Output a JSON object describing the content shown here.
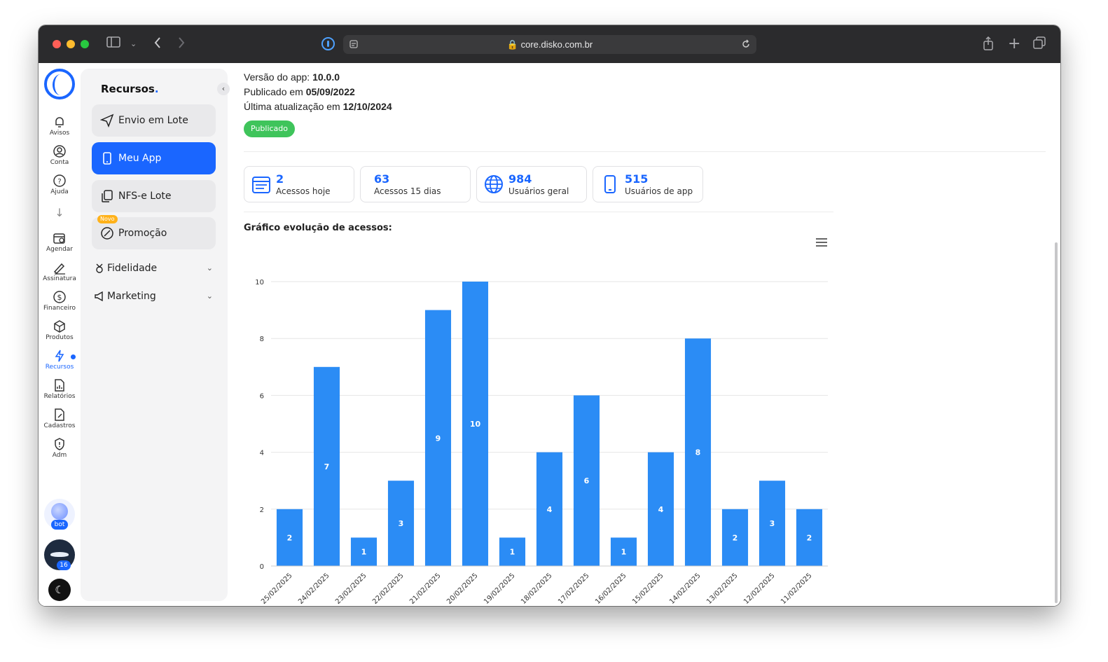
{
  "browser": {
    "url": "core.disko.com.br"
  },
  "rail": {
    "items": [
      {
        "label": "Avisos",
        "icon": "bell-icon"
      },
      {
        "label": "Conta",
        "icon": "user-circle-icon"
      },
      {
        "label": "Ajuda",
        "icon": "help-circle-icon"
      },
      {
        "label": "Agendar",
        "icon": "calendar-clock-icon"
      },
      {
        "label": "Assinatura",
        "icon": "signature-icon"
      },
      {
        "label": "Financeiro",
        "icon": "dollar-circle-icon"
      },
      {
        "label": "Produtos",
        "icon": "box-icon"
      },
      {
        "label": "Recursos",
        "icon": "bolt-icon"
      },
      {
        "label": "Relatórios",
        "icon": "report-icon"
      },
      {
        "label": "Cadastros",
        "icon": "edit-file-icon"
      },
      {
        "label": "Adm",
        "icon": "shield-icon"
      }
    ],
    "bot_label": "bot",
    "avatar_badge": "16"
  },
  "menu": {
    "title": "Recursos",
    "buttons": [
      {
        "label": "Envio em Lote",
        "icon": "send-icon"
      },
      {
        "label": "Meu App",
        "icon": "phone-icon"
      },
      {
        "label": "NFS-e Lote",
        "icon": "copy-icon"
      },
      {
        "label": "Promoção",
        "icon": "tag-icon",
        "tag": "Novo"
      }
    ],
    "groups": [
      {
        "label": "Fidelidade",
        "icon": "medal-icon"
      },
      {
        "label": "Marketing",
        "icon": "megaphone-icon"
      }
    ]
  },
  "app_info": {
    "version_label": "Versão do app:",
    "version_value": "10.0.0",
    "published_label": "Publicado em",
    "published_value": "05/09/2022",
    "updated_label": "Última atualização em",
    "updated_value": "12/10/2024",
    "status": "Publicado",
    "status_color": "#3fc45b"
  },
  "stats": [
    {
      "value": "2",
      "label": "Acessos hoje",
      "icon": "calendar-icon"
    },
    {
      "value": "63",
      "label": "Acessos 15 dias",
      "icon": ""
    },
    {
      "value": "984",
      "label": "Usuários geral",
      "icon": "globe-icon"
    },
    {
      "value": "515",
      "label": "Usuários de app",
      "icon": "phone-icon"
    }
  ],
  "chart_title": "Gráfico evolução de acessos:",
  "chart_data": {
    "type": "bar",
    "categories": [
      "25/02/2025",
      "24/02/2025",
      "23/02/2025",
      "22/02/2025",
      "21/02/2025",
      "20/02/2025",
      "19/02/2025",
      "18/02/2025",
      "17/02/2025",
      "16/02/2025",
      "15/02/2025",
      "14/02/2025",
      "13/02/2025",
      "12/02/2025",
      "11/02/2025"
    ],
    "values": [
      2,
      7,
      1,
      3,
      9,
      10,
      1,
      4,
      6,
      1,
      4,
      8,
      2,
      3,
      2
    ],
    "ylim": [
      0,
      10
    ],
    "yticks": [
      0,
      2,
      4,
      6,
      8,
      10
    ],
    "grid": true,
    "color": "#2b8cf5",
    "data_labels": true
  },
  "colors": {
    "accent": "#1a66ff"
  }
}
